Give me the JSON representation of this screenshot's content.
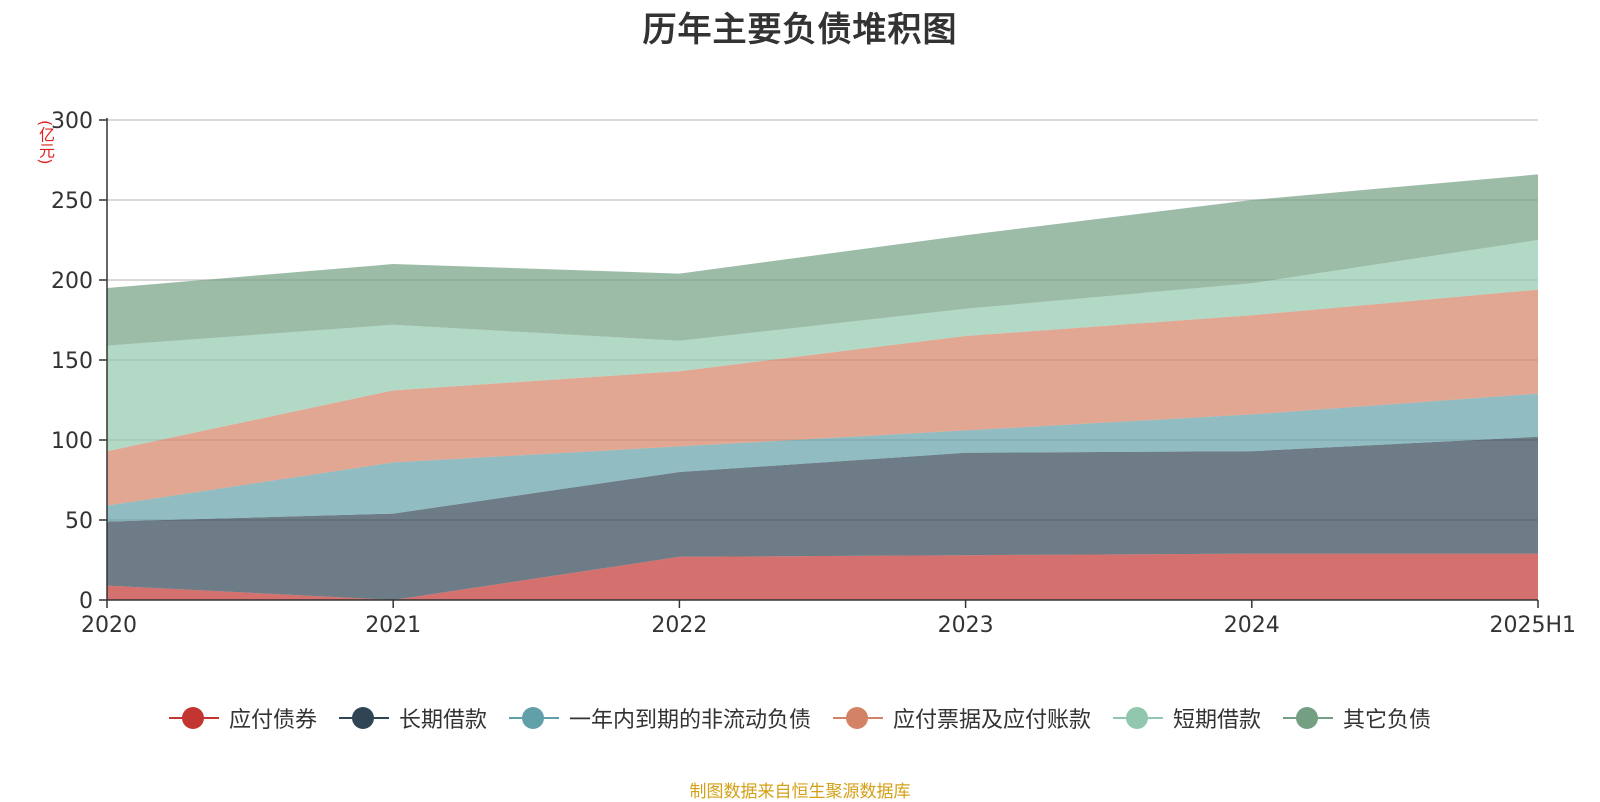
{
  "title": "历年主要负债堆积图",
  "unit_label": "(亿元)",
  "source_note": "制图数据来自恒生聚源数据库",
  "chart_data": {
    "type": "area",
    "stacked": true,
    "title": "历年主要负债堆积图",
    "ylabel": "(亿元)",
    "xlabel": "",
    "categories": [
      "2020",
      "2021",
      "2022",
      "2023",
      "2024",
      "2025H1"
    ],
    "ylim": [
      0,
      300
    ],
    "yticks": [
      0,
      50,
      100,
      150,
      200,
      250,
      300
    ],
    "grid": true,
    "legend_position": "bottom",
    "series": [
      {
        "name": "应付债券",
        "color": "#c23531",
        "values": [
          9,
          0,
          27,
          28,
          29,
          29
        ]
      },
      {
        "name": "长期借款",
        "color": "#2f4554",
        "values": [
          40,
          54,
          53,
          64,
          64,
          73
        ]
      },
      {
        "name": "一年内到期的非流动负债",
        "color": "#61a0a8",
        "values": [
          10,
          32,
          16,
          14,
          23,
          27
        ]
      },
      {
        "name": "应付票据及应付账款",
        "color": "#d48265",
        "values": [
          34,
          45,
          47,
          59,
          62,
          65
        ]
      },
      {
        "name": "短期借款",
        "color": "#91c7ae",
        "values": [
          66,
          41,
          19,
          17,
          20,
          31
        ]
      },
      {
        "name": "其它负债",
        "color": "#749f83",
        "values": [
          36,
          38,
          42,
          46,
          52,
          41
        ]
      }
    ]
  }
}
